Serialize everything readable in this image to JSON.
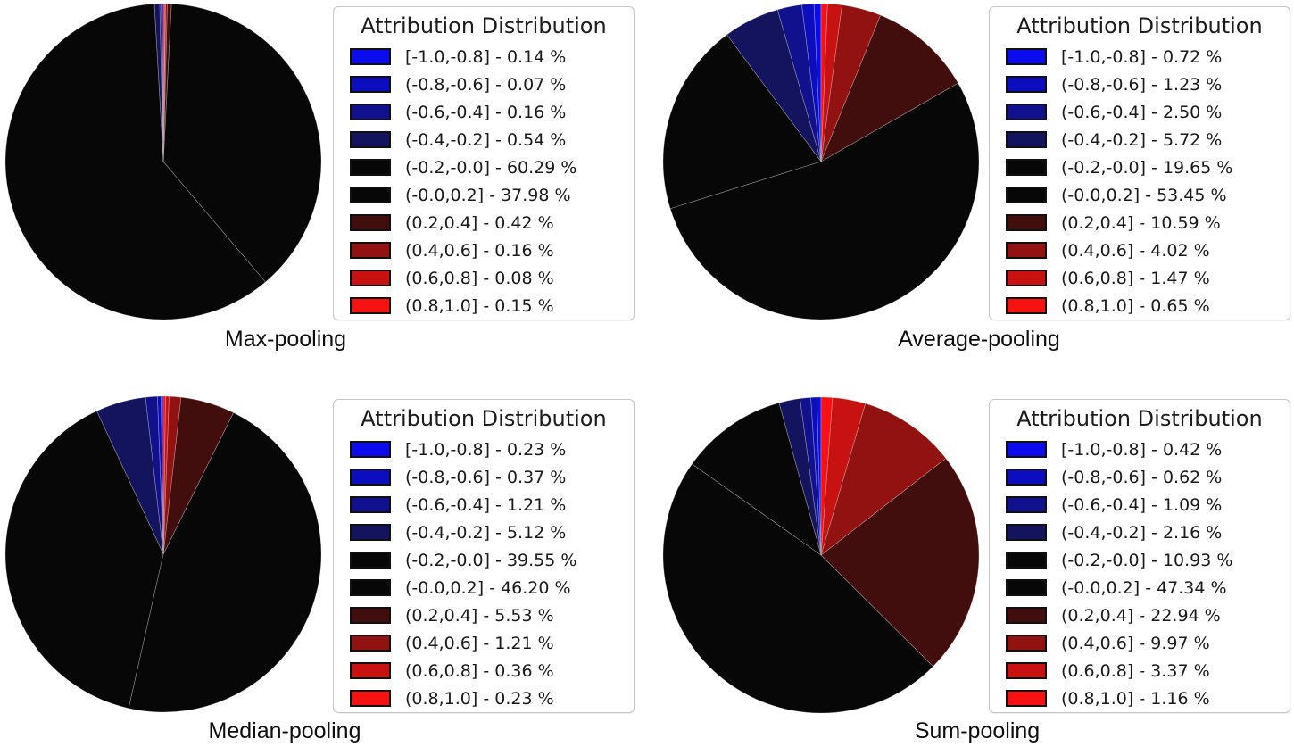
{
  "figure": {
    "background": "#ffffff",
    "colormap_note": "blue-to-black-to-red attribution bins"
  },
  "bin_colors": [
    "#0b0bee",
    "#0d0dc0",
    "#11118e",
    "#14145e",
    "#070707",
    "#070707",
    "#420d0d",
    "#921212",
    "#c81111",
    "#f81111"
  ],
  "chart_data": [
    {
      "type": "pie",
      "title": "Max-pooling",
      "legend_title": "Attribution Distribution",
      "legend_position": "right",
      "start_angle": 90,
      "direction": "counterclockwise",
      "unit": "%",
      "categories": [
        "[-1.0,-0.8]",
        "(-0.8,-0.6]",
        "(-0.6,-0.4]",
        "(-0.4,-0.2]",
        "(-0.2,-0.0]",
        "(-0.0,0.2]",
        "(0.2,0.4]",
        "(0.4,0.6]",
        "(0.6,0.8]",
        "(0.8,1.0]"
      ],
      "values": [
        0.14,
        0.07,
        0.16,
        0.54,
        60.29,
        37.98,
        0.42,
        0.16,
        0.08,
        0.15
      ]
    },
    {
      "type": "pie",
      "title": "Average-pooling",
      "legend_title": "Attribution Distribution",
      "legend_position": "right",
      "start_angle": 90,
      "direction": "counterclockwise",
      "unit": "%",
      "categories": [
        "[-1.0,-0.8]",
        "(-0.8,-0.6]",
        "(-0.6,-0.4]",
        "(-0.4,-0.2]",
        "(-0.2,-0.0]",
        "(-0.0,0.2]",
        "(0.2,0.4]",
        "(0.4,0.6]",
        "(0.6,0.8]",
        "(0.8,1.0]"
      ],
      "values": [
        0.72,
        1.23,
        2.5,
        5.72,
        19.65,
        53.45,
        10.59,
        4.02,
        1.47,
        0.65
      ]
    },
    {
      "type": "pie",
      "title": "Median-pooling",
      "legend_title": "Attribution Distribution",
      "legend_position": "right",
      "start_angle": 90,
      "direction": "counterclockwise",
      "unit": "%",
      "categories": [
        "[-1.0,-0.8]",
        "(-0.8,-0.6]",
        "(-0.6,-0.4]",
        "(-0.4,-0.2]",
        "(-0.2,-0.0]",
        "(-0.0,0.2]",
        "(0.2,0.4]",
        "(0.4,0.6]",
        "(0.6,0.8]",
        "(0.8,1.0]"
      ],
      "values": [
        0.23,
        0.37,
        1.21,
        5.12,
        39.55,
        46.2,
        5.53,
        1.21,
        0.36,
        0.23
      ]
    },
    {
      "type": "pie",
      "title": "Sum-pooling",
      "legend_title": "Attribution Distribution",
      "legend_position": "right",
      "start_angle": 90,
      "direction": "counterclockwise",
      "unit": "%",
      "categories": [
        "[-1.0,-0.8]",
        "(-0.8,-0.6]",
        "(-0.6,-0.4]",
        "(-0.4,-0.2]",
        "(-0.2,-0.0]",
        "(-0.0,0.2]",
        "(0.2,0.4]",
        "(0.4,0.6]",
        "(0.6,0.8]",
        "(0.8,1.0]"
      ],
      "values": [
        0.42,
        0.62,
        1.09,
        2.16,
        10.93,
        47.34,
        22.94,
        9.97,
        3.37,
        1.16
      ]
    }
  ]
}
